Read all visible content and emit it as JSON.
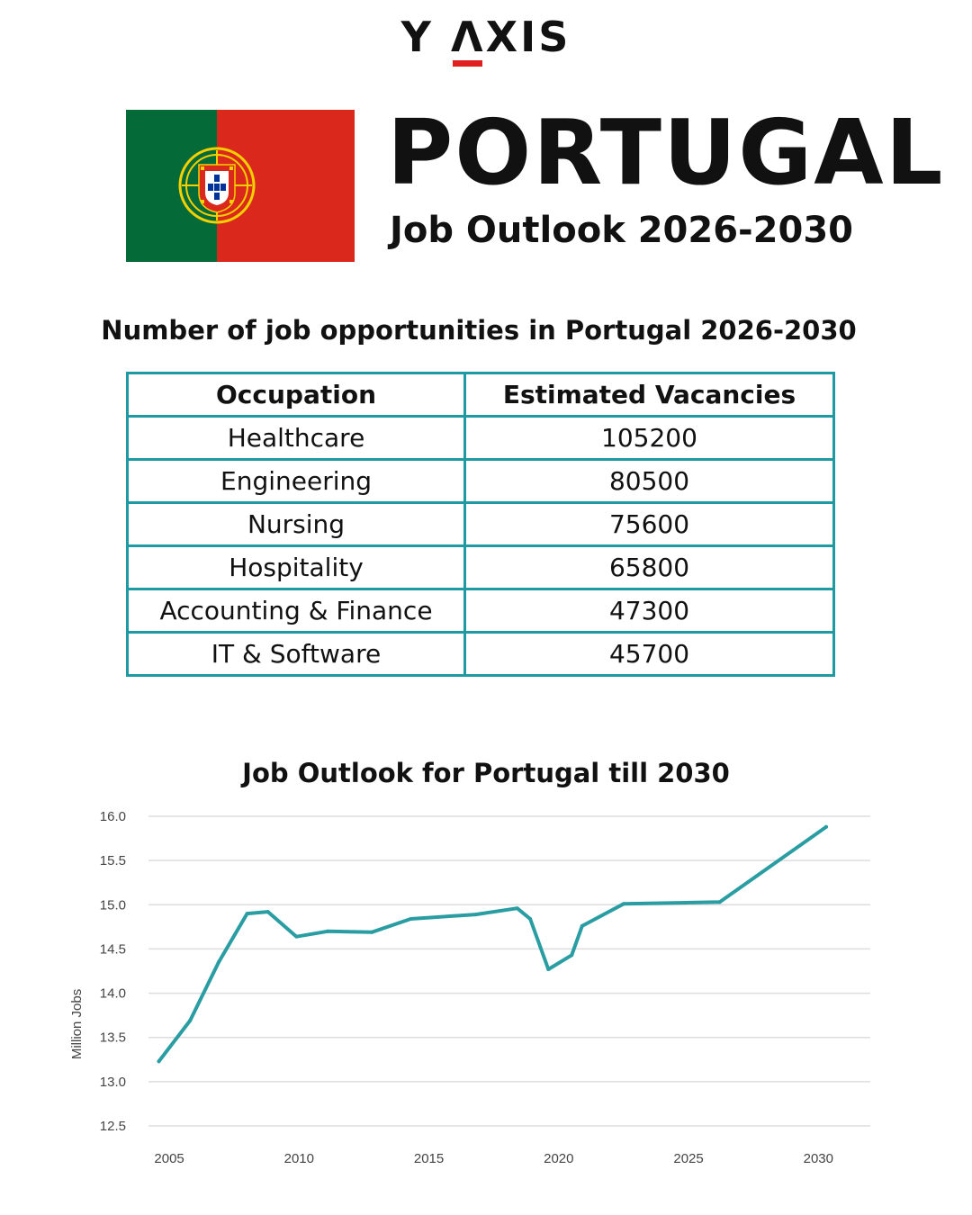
{
  "brand": {
    "logo_left": "Y",
    "logo_a": "Λ",
    "logo_right": "XIS",
    "accent_color": "#e02020"
  },
  "header": {
    "title": "PORTUGAL",
    "subtitle": "Job Outlook 2026-2030"
  },
  "flag": {
    "green": "#046a38",
    "red": "#da291c",
    "emblem": "portugal-coat-of-arms-icon"
  },
  "table": {
    "title": "Number of job opportunities in Portugal 2026-2030",
    "headers": [
      "Occupation",
      "Estimated Vacancies"
    ],
    "rows": [
      [
        "Healthcare",
        "105200"
      ],
      [
        "Engineering",
        "80500"
      ],
      [
        "Nursing",
        "75600"
      ],
      [
        "Hospitality",
        "65800"
      ],
      [
        "Accounting & Finance",
        "47300"
      ],
      [
        "IT & Software",
        "45700"
      ]
    ],
    "border_color": "#1f9aa3"
  },
  "chart_data": {
    "type": "line",
    "title": "Job Outlook for Portugal till 2030",
    "xlabel": "",
    "ylabel": "Million Jobs",
    "x_ticks": [
      "2005",
      "2010",
      "2015",
      "2020",
      "2025",
      "2030"
    ],
    "y_ticks": [
      "12.5",
      "13.0",
      "13.5",
      "14.0",
      "14.5",
      "15.0",
      "15.5",
      "16.0"
    ],
    "ylim": [
      12.5,
      16.0
    ],
    "grid": true,
    "line_color": "#2a9da3",
    "x": [
      2004.6,
      2005.8,
      2006.9,
      2008.0,
      2008.8,
      2009.9,
      2011.1,
      2012.8,
      2014.3,
      2016.8,
      2018.4,
      2018.9,
      2019.6,
      2020.5,
      2020.9,
      2022.5,
      2026.2,
      2030.3
    ],
    "values": [
      13.23,
      13.69,
      14.35,
      14.9,
      14.92,
      14.64,
      14.7,
      14.69,
      14.84,
      14.89,
      14.96,
      14.84,
      14.27,
      14.43,
      14.76,
      15.01,
      15.03,
      15.88
    ]
  }
}
